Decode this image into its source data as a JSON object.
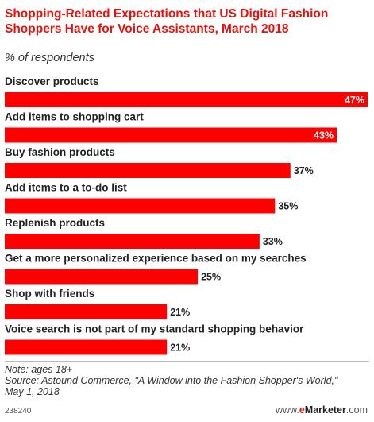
{
  "title": "Shopping-Related Expectations that US Digital Fashion Shoppers Have for Voice Assistants, March 2018",
  "subtitle": "% of respondents",
  "colors": {
    "bar": "#ff0000",
    "accent": "#e8120c",
    "label_inside": "#ffffff",
    "label_outside": "#222222"
  },
  "chart_data": {
    "type": "bar",
    "orientation": "horizontal",
    "title": "Shopping-Related Expectations that US Digital Fashion Shoppers Have for Voice Assistants, March 2018",
    "subtitle": "% of respondents",
    "categories": [
      "Discover products",
      "Add items to shopping cart",
      "Buy fashion products",
      "Add items to a to-do list",
      "Replenish products",
      "Get a more personalized experience based on my searches",
      "Shop with friends",
      "Voice search is not part of my standard shopping behavior"
    ],
    "values": [
      47,
      43,
      37,
      35,
      33,
      25,
      21,
      21
    ],
    "value_labels": [
      "47%",
      "43%",
      "37%",
      "35%",
      "33%",
      "25%",
      "21%",
      "21%"
    ],
    "xlim": [
      0,
      47
    ],
    "grid": false,
    "legend": "none"
  },
  "footer": {
    "note": "Note: ages 18+",
    "source_line1": "Source: Astound Commerce, \"A Window into the Fashion Shopper's World,\"",
    "source_line2": "May 1, 2018",
    "chart_id": "238240",
    "brand_prefix": "www.",
    "brand_e": "e",
    "brand_name": "Marketer",
    "brand_suffix": ".com"
  }
}
